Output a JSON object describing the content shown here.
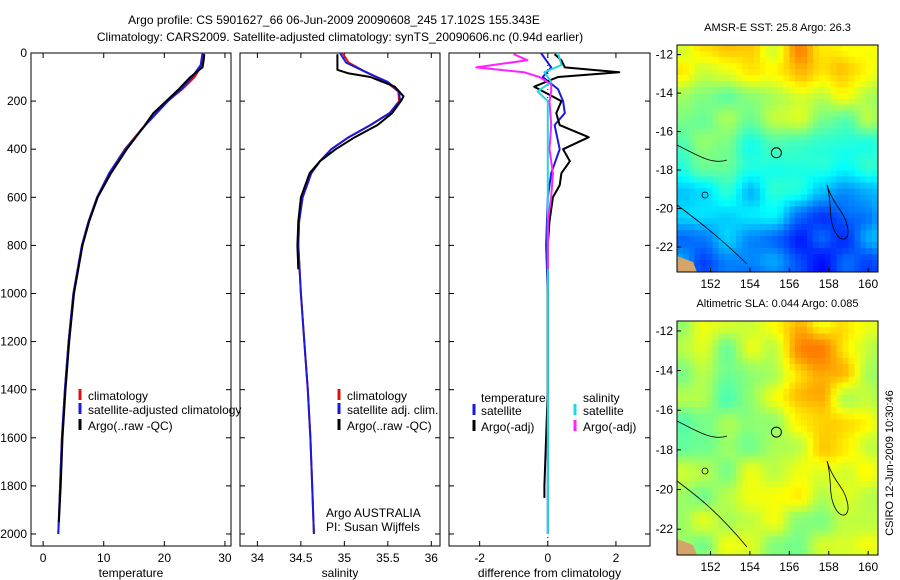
{
  "header": {
    "line1": "Argo profile: CS 5901627_66 06-Jun-2009 20090608_245 17.102S 155.343E",
    "line2": "Climatology: CARS2009. Satellite-adjusted climatology: synTS_20090606.nc (0.94d earlier)"
  },
  "side_label": "CSIRO 12-Jun-2009 10:30:46",
  "colors": {
    "clim": "#e01010",
    "sat": "#1a1adc",
    "argo": "#000000",
    "sal_sat": "#20d8e0",
    "sal_argo": "#ff22ff"
  },
  "chart_data": [
    {
      "id": "temperature",
      "type": "line",
      "xlabel": "temperature",
      "ylabel": "",
      "xlim": [
        -2,
        31
      ],
      "ylim": [
        2050,
        0
      ],
      "xticks": [
        0,
        10,
        20,
        30
      ],
      "yticks": [
        0,
        200,
        400,
        600,
        800,
        1000,
        1200,
        1400,
        1600,
        1800,
        2000
      ],
      "legend": {
        "placement": "lower-right",
        "entries": [
          "climatology",
          "satellite-adjusted climatology",
          "Argo(..raw -QC)"
        ]
      },
      "series": [
        {
          "name": "climatology",
          "color": "clim",
          "depth": [
            0,
            50,
            100,
            150,
            200,
            300,
            400,
            500,
            600,
            700,
            800,
            1000,
            1200,
            1400,
            1600,
            1800,
            2000
          ],
          "values": [
            26.5,
            26.2,
            25.0,
            23.0,
            20.5,
            16.8,
            13.5,
            10.9,
            8.9,
            7.5,
            6.4,
            5.0,
            4.2,
            3.6,
            3.1,
            2.8,
            2.5
          ]
        },
        {
          "name": "satellite-adjusted climatology",
          "color": "sat",
          "depth": [
            0,
            50,
            100,
            150,
            200,
            300,
            400,
            500,
            600,
            700,
            800,
            1000,
            1200,
            1400,
            1600,
            1800,
            2000
          ],
          "values": [
            26.3,
            26.0,
            24.6,
            22.8,
            20.6,
            16.9,
            13.6,
            10.9,
            8.9,
            7.5,
            6.4,
            5.0,
            4.2,
            3.6,
            3.1,
            2.8,
            2.5
          ]
        },
        {
          "name": "Argo(..raw -QC)",
          "color": "argo",
          "depth": [
            5,
            30,
            60,
            100,
            150,
            200,
            250,
            300,
            400,
            500,
            600,
            700,
            800,
            1000,
            1200,
            1400,
            1600,
            1800,
            1950
          ],
          "values": [
            26.6,
            26.5,
            26.3,
            24.3,
            22.4,
            20.3,
            18.2,
            16.8,
            13.8,
            11.2,
            9.0,
            7.6,
            6.5,
            5.1,
            4.3,
            3.7,
            3.2,
            2.9,
            2.6
          ]
        }
      ]
    },
    {
      "id": "salinity",
      "type": "line",
      "xlabel": "salinity",
      "ylabel": "",
      "xlim": [
        33.8,
        36.1
      ],
      "ylim": [
        2050,
        0
      ],
      "xticks": [
        34,
        34.5,
        35,
        35.5,
        36
      ],
      "legend": {
        "placement": "lower-right",
        "entries": [
          "climatology",
          "satellite adj. clim.",
          "Argo(..raw -QC)"
        ]
      },
      "annotation": [
        "Argo AUSTRALIA",
        "PI: Susan Wijffels"
      ],
      "series": [
        {
          "name": "climatology",
          "color": "clim",
          "depth": [
            0,
            40,
            80,
            120,
            160,
            200,
            250,
            300,
            350,
            400,
            450,
            500,
            600,
            700,
            800,
            1000,
            1200,
            1400,
            1600,
            1800,
            2000
          ],
          "values": [
            34.98,
            35.05,
            35.25,
            35.48,
            35.62,
            35.63,
            35.52,
            35.3,
            35.05,
            34.85,
            34.72,
            34.62,
            34.52,
            34.48,
            34.47,
            34.5,
            34.54,
            34.58,
            34.61,
            34.63,
            34.65
          ]
        },
        {
          "name": "satellite adj. clim.",
          "color": "sat",
          "depth": [
            0,
            40,
            80,
            120,
            160,
            200,
            250,
            300,
            350,
            400,
            450,
            500,
            600,
            700,
            800,
            1000,
            1200,
            1400,
            1600,
            1800,
            2000
          ],
          "values": [
            34.95,
            35.02,
            35.25,
            35.5,
            35.63,
            35.64,
            35.52,
            35.3,
            35.05,
            34.85,
            34.72,
            34.62,
            34.52,
            34.48,
            34.47,
            34.5,
            34.54,
            34.58,
            34.61,
            34.63,
            34.65
          ]
        },
        {
          "name": "Argo(..raw -QC)",
          "color": "argo",
          "depth": [
            5,
            70,
            85,
            100,
            140,
            180,
            200,
            250,
            300,
            350,
            400,
            450,
            500,
            600,
            700,
            800,
            900
          ],
          "values": [
            34.92,
            34.92,
            35.05,
            35.3,
            35.58,
            35.68,
            35.65,
            35.55,
            35.38,
            35.12,
            34.9,
            34.72,
            34.6,
            34.5,
            34.47,
            34.46,
            34.47
          ]
        }
      ]
    },
    {
      "id": "difference",
      "type": "line",
      "xlabel": "difference from climatology",
      "ylabel": "",
      "xlim": [
        -2.9,
        3.0
      ],
      "ylim": [
        2050,
        0
      ],
      "xticks": [
        -2,
        0,
        2
      ],
      "legend": {
        "placement": "lower-center",
        "entries": [
          "temperature",
          "satellite",
          "Argo(-adj)",
          "salinity",
          "satellite",
          "Argo(-adj)"
        ]
      },
      "series": [
        {
          "name": "temperature satellite",
          "color": "sat",
          "depth": [
            0,
            30,
            60,
            100,
            150,
            200,
            250,
            300,
            400,
            500,
            600,
            800,
            1000,
            1500,
            2000
          ],
          "values": [
            -0.2,
            -0.05,
            0.1,
            -0.15,
            0.3,
            0.45,
            0.5,
            0.2,
            0.35,
            0.1,
            0.0,
            -0.05,
            0.0,
            0.0,
            0.0
          ]
        },
        {
          "name": "temperature Argo(-adj)",
          "color": "argo",
          "depth": [
            5,
            30,
            60,
            80,
            100,
            140,
            200,
            250,
            300,
            350,
            400,
            450,
            500,
            550,
            600,
            700,
            800,
            1000,
            1200,
            1400,
            1600,
            1800,
            1850
          ],
          "values": [
            0.2,
            0.4,
            0.5,
            2.1,
            0.3,
            -0.4,
            0.4,
            0.25,
            0.35,
            1.2,
            0.45,
            0.65,
            0.4,
            0.35,
            0.15,
            0.05,
            0.0,
            0.0,
            0.0,
            0.0,
            -0.05,
            -0.1,
            -0.1
          ]
        },
        {
          "name": "salinity satellite",
          "color": "sal_sat",
          "depth": [
            0,
            50,
            80,
            120,
            160,
            200,
            300,
            400,
            600,
            800,
            1000,
            1500,
            2000
          ],
          "values": [
            0.3,
            0.4,
            -0.1,
            0.1,
            -0.3,
            0.0,
            0.0,
            0.0,
            0.0,
            0.0,
            0.0,
            0.0,
            0.0
          ]
        },
        {
          "name": "salinity Argo(-adj)",
          "color": "sal_argo",
          "depth": [
            5,
            30,
            60,
            80,
            100,
            130,
            160,
            200,
            300,
            400,
            500,
            600,
            700,
            800,
            900
          ],
          "values": [
            -1.0,
            -0.6,
            -2.1,
            -0.7,
            -0.25,
            0.1,
            0.1,
            0.05,
            0.1,
            0.05,
            0.15,
            0.1,
            0.0,
            0.0,
            0.0
          ]
        }
      ]
    },
    {
      "id": "sst_map",
      "type": "heatmap",
      "title": "AMSR-E SST: 25.8 Argo: 26.3",
      "xlim": [
        150.3,
        160.5
      ],
      "ylim": [
        -23.3,
        -11.5
      ],
      "xticks": [
        152,
        154,
        156,
        158,
        160
      ],
      "yticks": [
        -12,
        -14,
        -16,
        -18,
        -20,
        -22
      ],
      "marker": {
        "lon": 155.343,
        "lat": -17.102
      }
    },
    {
      "id": "sla_map",
      "type": "heatmap",
      "title": "Altimetric SLA: 0.044 Argo: 0.085",
      "xlim": [
        150.3,
        160.5
      ],
      "ylim": [
        -23.3,
        -11.5
      ],
      "xticks": [
        152,
        154,
        156,
        158,
        160
      ],
      "yticks": [
        -12,
        -14,
        -16,
        -18,
        -20,
        -22
      ],
      "marker": {
        "lon": 155.343,
        "lat": -17.102
      }
    }
  ]
}
